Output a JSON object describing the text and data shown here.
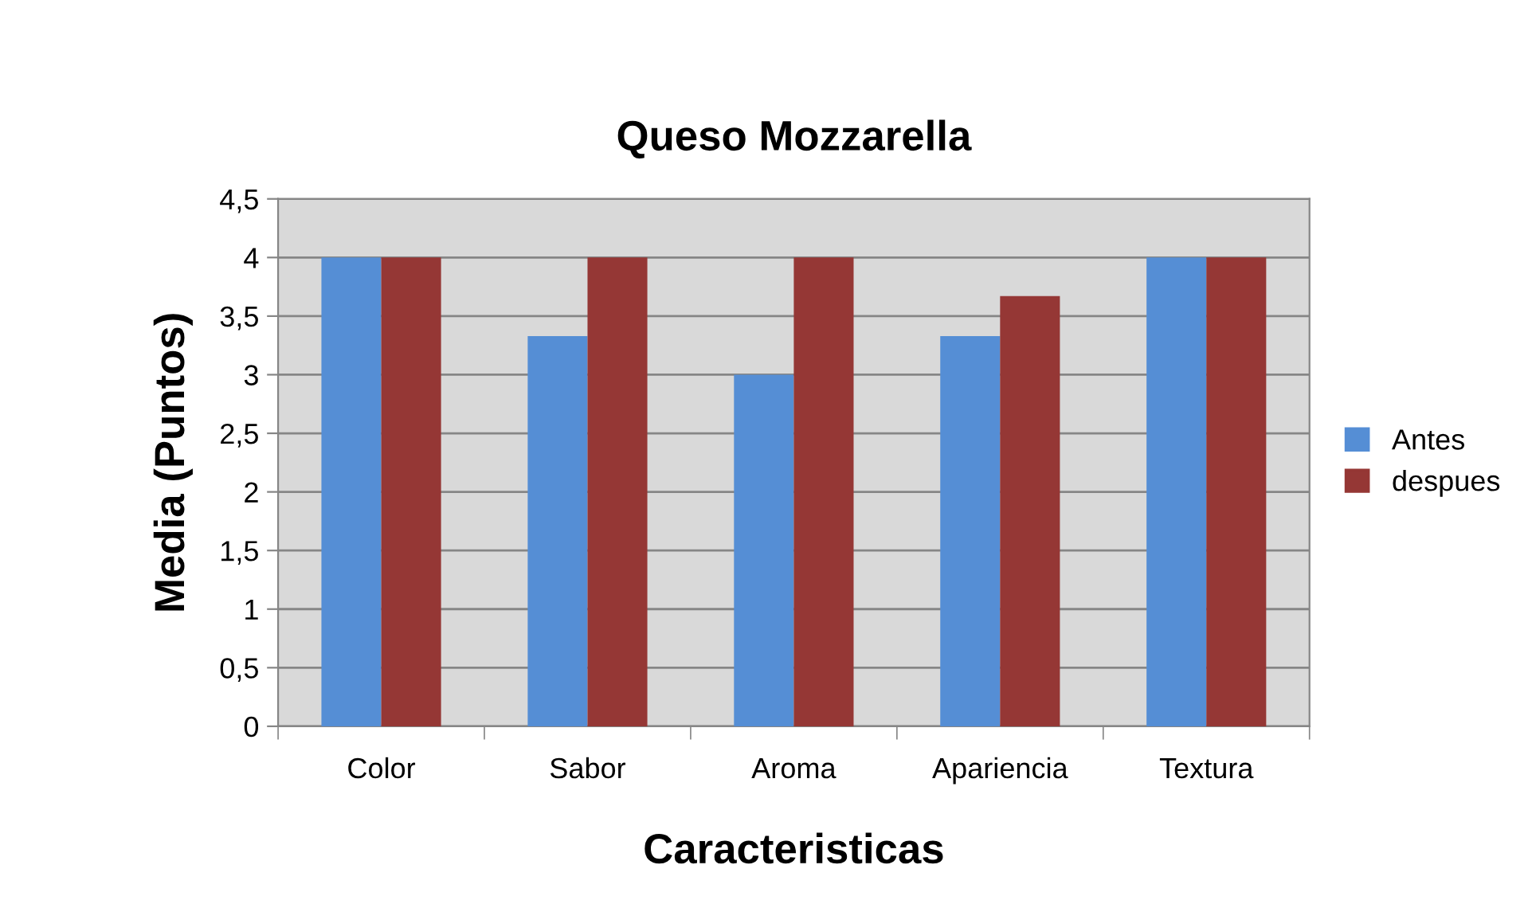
{
  "chart_data": {
    "type": "bar",
    "title": "Queso Mozzarella",
    "xlabel": "Caracteristicas",
    "ylabel": "Media (Puntos)",
    "categories": [
      "Color",
      "Sabor",
      "Aroma",
      "Apariencia",
      "Textura"
    ],
    "series": [
      {
        "name": "Antes",
        "color": "#558ed5",
        "values": [
          4,
          3.33,
          3,
          3.33,
          4
        ]
      },
      {
        "name": "despues",
        "color": "#953735",
        "values": [
          4,
          4,
          4,
          3.67,
          4
        ]
      }
    ],
    "ylim": [
      0,
      4.5
    ],
    "yticks": [
      0,
      {
        "value": 0.5,
        "label": "0,5"
      },
      1,
      {
        "value": 1.5,
        "label": "1,5"
      },
      2,
      {
        "value": 2.5,
        "label": "2,5"
      },
      3,
      {
        "value": 3.5,
        "label": "3,5"
      },
      4,
      {
        "value": 4.5,
        "label": "4,5"
      }
    ],
    "grid": "y",
    "legend": "right"
  }
}
